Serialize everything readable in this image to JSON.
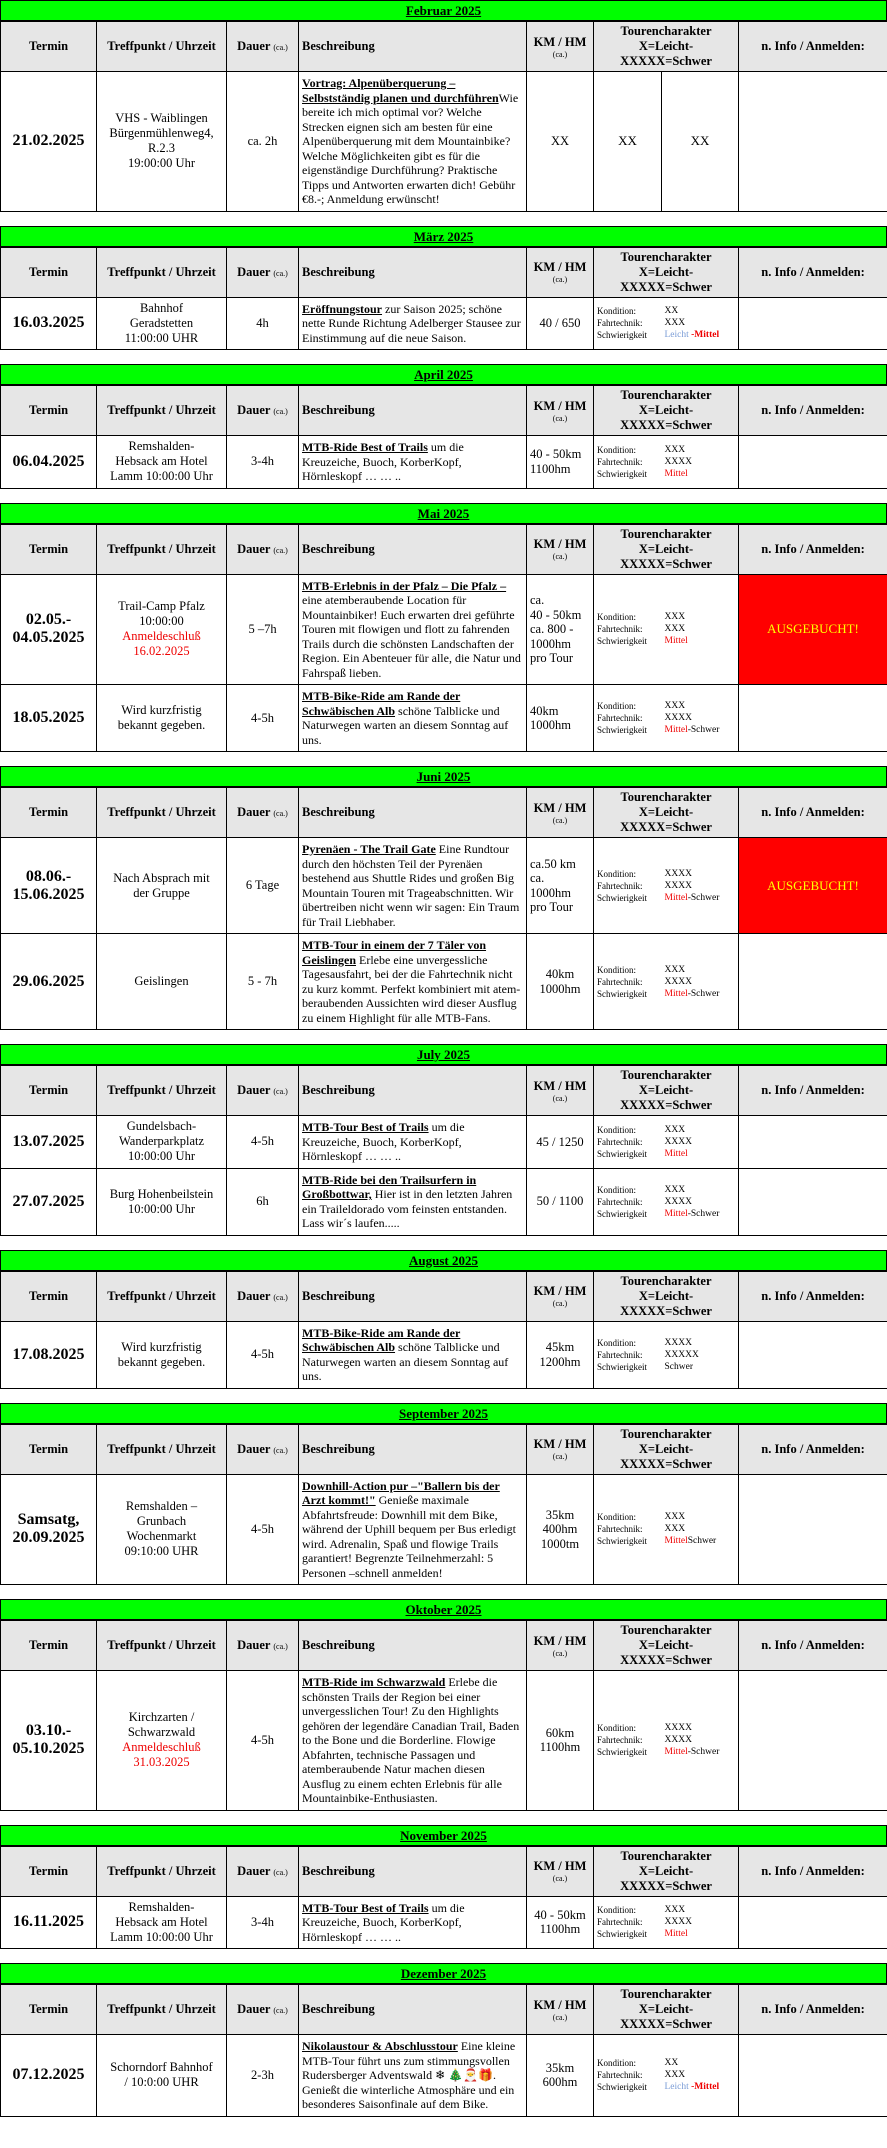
{
  "headers": {
    "termin": "Termin",
    "treffpunkt": "Treffpunkt / Uhrzeit",
    "dauer": "Dauer",
    "dauer_ca": "(ca.)",
    "beschreibung": "Beschreibung",
    "km": "KM / HM",
    "km_ca": "(ca.)",
    "tc_line1": "Tourencharakter",
    "tc_line2": "X=Leicht-XXXXX=Schwer",
    "info": "n. Info / Anmelden:"
  },
  "labels": {
    "kondition": "Kondition:",
    "fahrtechnik": "Fahrtechnik:",
    "schwierigkeit": "Schwierigkeit"
  },
  "months": [
    {
      "title": "Februar  2025",
      "events": [
        {
          "date": "21.02.2025",
          "place": [
            "VHS - Waiblingen",
            "Bürgenmühlenweg4,",
            "R.2.3",
            "19:00:00 Uhr"
          ],
          "red": "",
          "duration": "ca. 2h",
          "title": "Vortrag: Alpenüberquerung – Selbstständig planen und durchführen",
          "text": "Wie bereite ich mich optimal vor? Welche Strecken eignen sich am besten für eine Alpenüberquerung mit dem Mountainbike? Welche Möglichkeiten gibt es für die eigenständige Durchführung? Praktische Tipps und Antworten erwarten dich! Gebühr €8.-; Anmeldung erwünscht!",
          "km": [
            "XX"
          ],
          "xx": [
            "XX",
            "XX"
          ],
          "info": ""
        }
      ]
    },
    {
      "title": "März  2025",
      "events": [
        {
          "date": "16.03.2025",
          "place": [
            "Bahnhof",
            "Geradstetten",
            "11:00:00 UHR"
          ],
          "red": "",
          "duration": "4h",
          "title": "Eröffnungstour",
          "text": " zur Saison 2025; schöne nette Runde Richtung Adelberger Stausee zur Einstimmung auf die neue Saison.",
          "km": [
            "40 / 650"
          ],
          "levels": [
            "XX",
            "XXX",
            "Leicht -Mittel"
          ],
          "info": ""
        }
      ]
    },
    {
      "title": "April  2025",
      "events": [
        {
          "date": "06.04.2025",
          "place": [
            "Remshalden-",
            "Hebsack am Hotel",
            "Lamm 10:00:00 Uhr"
          ],
          "red": "",
          "duration": "3-4h",
          "title": "MTB-Ride Best of Trails",
          "text": " um die Kreuzeiche, Buoch, KorberKopf, Hörnleskopf … … ..",
          "km": [
            "40 - 50km",
            "1100hm"
          ],
          "kmLeft": true,
          "levels": [
            "XXX",
            "XXXX",
            "Mittel"
          ],
          "info": ""
        }
      ]
    },
    {
      "title": "Mai  2025",
      "events": [
        {
          "date": "02.05.-\n04.05.2025",
          "place": [
            "Trail-Camp Pfalz",
            "10:00:00"
          ],
          "red": "Anmeldeschluß 16.02.2025",
          "duration": "5 –7h",
          "title": "MTB-Erlebnis in der Pfalz – Die Pfalz –",
          "text": " eine atemberaubende Location für Mountainbiker! Euch erwarten drei geführte Touren mit flowigen und flott zu fahrenden Trails durch die schönsten Landschaften der Region. Ein Abenteuer für alle, die Natur und Fahrspaß lieben.",
          "km": [
            "ca.",
            "40 - 50km",
            "ca. 800 -",
            "1000hm",
            "pro Tour"
          ],
          "kmLeft": true,
          "levels": [
            "XXX",
            "XXX",
            "Mittel"
          ],
          "info": "AUSGEBUCHT!",
          "booked": true
        },
        {
          "date": "18.05.2025",
          "place": [
            "Wird kurzfristig",
            "bekannt gegeben."
          ],
          "red": "",
          "duration": "4-5h",
          "title": "MTB-Bike-Ride am Rande der Schwäbischen Alb",
          "text": " schöne Talblicke und Naturwegen warten an diesem Sonntag auf uns.",
          "km": [
            "40km",
            "1000hm"
          ],
          "kmLeft": true,
          "levels": [
            "XXX",
            "XXXX",
            "Mittel-Schwer"
          ],
          "info": ""
        }
      ]
    },
    {
      "title": "Juni  2025",
      "events": [
        {
          "date": "08.06.-\n15.06.2025",
          "place": [
            "Nach Absprach mit",
            "der Gruppe"
          ],
          "red": "",
          "duration": "6 Tage",
          "title": "Pyrenäen - The Trail Gate",
          "text": " Eine Rundtour durch den höchsten Teil der Pyrenäen bestehend aus Shuttle Rides und großen Big Mountain Touren mit Trageabschnitten. Wir übertreiben nicht wenn wir sagen: Ein Traum für Trail Liebhaber.",
          "km": [
            "ca.50 km",
            "ca.",
            "1000hm",
            "pro Tour"
          ],
          "kmLeft": true,
          "levels": [
            "XXXX",
            "XXXX",
            "Mittel-Schwer"
          ],
          "info": "AUSGEBUCHT!",
          "booked": true
        },
        {
          "date": "29.06.2025",
          "place": [
            "Geislingen"
          ],
          "red": "",
          "duration": "5 - 7h",
          "title": "MTB-Tour in einem der 7 Täler von Geislingen",
          "text": " Erlebe eine unvergessliche Tagesausfahrt, bei der die Fahrtechnik nicht zu kurz kommt. Perfekt kombiniert mit atem-beraubenden Aussichten wird dieser Ausflug zu einem Highlight für alle MTB-Fans.",
          "km": [
            "40km",
            "1000hm"
          ],
          "levels": [
            "XXX",
            "XXXX",
            "Mittel-Schwer"
          ],
          "info": ""
        }
      ]
    },
    {
      "title": "July  2025",
      "events": [
        {
          "date": "13.07.2025",
          "place": [
            "Gundelsbach-",
            "Wanderparkplatz",
            "10:00:00 Uhr"
          ],
          "red": "",
          "duration": "4-5h",
          "title": "MTB-Tour Best of Trails",
          "text": " um die Kreuzeiche, Buoch, KorberKopf, Hörnleskopf … … ..",
          "km": [
            "45 / 1250"
          ],
          "levels": [
            "XXX",
            "XXXX",
            "Mittel"
          ],
          "info": ""
        },
        {
          "date": "27.07.2025",
          "place": [
            "Burg Hohenbeilstein",
            "10:00:00 Uhr"
          ],
          "red": "",
          "duration": "6h",
          "title": "MTB-Ride bei den Trailsurfern in Großbottwar,",
          "text": " Hier ist in den letzten Jahren ein Traileldorado vom feinsten entstanden. Lass wir´s laufen.....",
          "km": [
            "50 / 1100"
          ],
          "levels": [
            "XXX",
            "XXXX",
            "Mittel-Schwer"
          ],
          "info": ""
        }
      ]
    },
    {
      "title": "August  2025",
      "events": [
        {
          "date": "17.08.2025",
          "place": [
            "Wird kurzfristig",
            "bekannt gegeben."
          ],
          "red": "",
          "duration": "4-5h",
          "title": "MTB-Bike-Ride am Rande der Schwäbischen Alb",
          "text": " schöne Talblicke und Naturwegen warten an diesem Sonntag auf uns.",
          "km": [
            "45km",
            "1200hm"
          ],
          "levels": [
            "XXXX",
            "XXXXX",
            "Schwer"
          ],
          "plainLevel": true,
          "info": ""
        }
      ]
    },
    {
      "title": "September  2025",
      "events": [
        {
          "date": "Samsatg,\n20.09.2025",
          "place": [
            "Remshalden –",
            "Grunbach",
            "Wochenmarkt",
            "09:10:00 UHR"
          ],
          "red": "",
          "duration": "4-5h",
          "title": "Downhill-Action pur –\"Ballern bis der Arzt kommt!\"",
          "text": " Genieße maximale Abfahrtsfreude: Downhill mit dem Bike, während der Uphill bequem per Bus erledigt wird. Adrenalin, Spaß und flowige Trails garantiert! Begrenzte Teilnehmerzahl: 5 Personen –schnell anmelden!",
          "km": [
            "35km",
            "400hm",
            "1000tm"
          ],
          "levels": [
            "XXX",
            "XXX",
            "MittelSchwer"
          ],
          "info": ""
        }
      ]
    },
    {
      "title": "Oktober  2025",
      "events": [
        {
          "date": "03.10.-\n05.10.2025",
          "place": [
            "Kirchzarten /",
            "Schwarzwald"
          ],
          "red": "Anmeldeschluß 31.03.2025",
          "duration": "4-5h",
          "title": "MTB-Ride im Schwarzwald",
          "text": " Erlebe die schönsten Trails der Region bei einer unvergesslichen Tour! Zu den Highlights gehören der legendäre Canadian Trail, Baden to the Bone und die Borderline. Flowige Abfahrten, technische Passagen und atemberaubende Natur machen diesen Ausflug zu einem echten Erlebnis für alle Mountainbike-Enthusiasten.",
          "km": [
            "60km",
            "1100hm"
          ],
          "levels": [
            "XXXX",
            "XXXX",
            "Mittel-Schwer"
          ],
          "info": ""
        }
      ]
    },
    {
      "title": "November  2025",
      "events": [
        {
          "date": "16.11.2025",
          "place": [
            "Remshalden-",
            "Hebsack am Hotel",
            "Lamm 10:00:00 Uhr"
          ],
          "red": "",
          "duration": "3-4h",
          "title": "MTB-Tour Best of Trails",
          "text": " um die Kreuzeiche, Buoch, KorberKopf, Hörnleskopf … … ..",
          "km": [
            "40 - 50km",
            "1100hm"
          ],
          "levels": [
            "XXX",
            "XXXX",
            "Mittel"
          ],
          "info": ""
        }
      ]
    },
    {
      "title": "Dezember  2025",
      "events": [
        {
          "date": "07.12.2025",
          "place": [
            "Schorndorf Bahnhof",
            "/    10:0:00 UHR"
          ],
          "red": "",
          "duration": "2-3h",
          "title": "Nikolaustour  & Abschlusstour",
          "text": " Eine kleine MTB-Tour führt uns zum stimmungsvollen Rudersberger Adventswald ❄ 🎄🎅🎁. Genießt die winterliche Atmosphäre und ein besonderes Saisonfinale auf dem Bike.",
          "km": [
            "35km",
            "600hm"
          ],
          "levels": [
            "XX",
            "XXX",
            "Leicht -Mittel"
          ],
          "info": ""
        }
      ]
    }
  ]
}
